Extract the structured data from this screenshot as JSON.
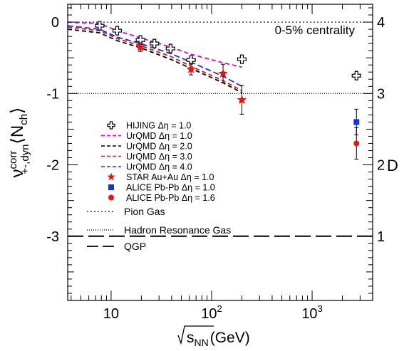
{
  "chart_data": {
    "type": "scatter",
    "x_scale": "log",
    "xlim": [
      3.7,
      4000
    ],
    "ylim": [
      -3.9,
      0.25
    ],
    "ylim_right": [
      0.1,
      4.25
    ],
    "xlabel": "(GeV)",
    "xlabel_sqrt": "s",
    "xlabel_sub": "NN",
    "ylabel_base": "ν",
    "ylabel_sup": "corr",
    "ylabel_sub": "+-,dyn",
    "ylabel_angle": "⟨N",
    "ylabel_angle_sub": "ch",
    "ylabel_angle_close": "⟩",
    "right_label": "D",
    "annotation": "0-5% centrality",
    "x_ticks": [
      {
        "value": 10,
        "label": "10",
        "sup": ""
      },
      {
        "value": 100,
        "label": "10",
        "sup": "2"
      },
      {
        "value": 1000,
        "label": "10",
        "sup": "3"
      }
    ],
    "y_ticks": [
      {
        "value": 0,
        "label": "0"
      },
      {
        "value": -1,
        "label": "-1"
      },
      {
        "value": -2,
        "label": "-2"
      },
      {
        "value": -3,
        "label": "-3"
      }
    ],
    "y_right_ticks": [
      {
        "value": 4,
        "label": "4"
      },
      {
        "value": 3,
        "label": "3"
      },
      {
        "value": 2,
        "label": "2"
      },
      {
        "value": 1,
        "label": "1"
      }
    ],
    "reference_lines": [
      {
        "name": "Pion Gas",
        "y": 0,
        "style": "dotted"
      },
      {
        "name": "Hadron Resonance Gas",
        "y": -1,
        "style": "fine-dotted"
      },
      {
        "name": "QGP",
        "y": -3,
        "style": "long-dash"
      }
    ],
    "series": [
      {
        "name": "HIJING Δη = 1.0",
        "kind": "points",
        "marker": "open-cross",
        "color": "#000000",
        "x": [
          7.7,
          11.5,
          19.6,
          27,
          39,
          62.4,
          200,
          2760
        ],
        "y": [
          -0.05,
          -0.12,
          -0.25,
          -0.3,
          -0.37,
          -0.53,
          -0.52,
          -0.75
        ]
      },
      {
        "name": "UrQMD Δη = 1.0",
        "kind": "line",
        "color": "#dd00dd",
        "x": [
          3.7,
          7.7,
          11.5,
          19.6,
          39,
          62.4,
          130,
          200
        ],
        "y": [
          0,
          -0.02,
          -0.12,
          -0.22,
          -0.35,
          -0.45,
          -0.57,
          -0.63
        ]
      },
      {
        "name": "UrQMD Δη = 2.0",
        "kind": "line",
        "color": "#000000",
        "x": [
          3.7,
          7.7,
          11.5,
          19.6,
          39,
          62.4,
          130,
          200
        ],
        "y": [
          -0.1,
          -0.15,
          -0.26,
          -0.36,
          -0.52,
          -0.65,
          -0.85,
          -0.99
        ]
      },
      {
        "name": "UrQMD Δη = 3.0",
        "kind": "line",
        "color": "#ee1111",
        "x": [
          3.7,
          7.7,
          11.5,
          19.6,
          39,
          62.4,
          130,
          200
        ],
        "y": [
          -0.07,
          -0.12,
          -0.23,
          -0.33,
          -0.48,
          -0.62,
          -0.82,
          -0.96
        ]
      },
      {
        "name": "UrQMD Δη = 4.0",
        "kind": "line",
        "color": "#1133ee",
        "x": [
          3.7,
          7.7,
          11.5,
          19.6,
          39,
          62.4,
          130,
          200
        ],
        "y": [
          -0.05,
          -0.1,
          -0.21,
          -0.3,
          -0.44,
          -0.56,
          -0.76,
          -0.9
        ]
      },
      {
        "name": "STAR Au+Au Δη = 1.0",
        "kind": "points",
        "marker": "star",
        "color": "#ee1111",
        "x": [
          19.6,
          62.4,
          130,
          200
        ],
        "y": [
          -0.35,
          -0.66,
          -0.72,
          -1.09
        ],
        "err": [
          0.06,
          0.08,
          0.13,
          0.2
        ]
      },
      {
        "name": "ALICE Pb-Pb Δη = 1.0",
        "kind": "points",
        "marker": "square",
        "color": "#1133ee",
        "x": [
          2760
        ],
        "y": [
          -1.4
        ],
        "err": [
          0.18
        ]
      },
      {
        "name": "ALICE Pb-Pb Δη = 1.6",
        "kind": "points",
        "marker": "circle",
        "color": "#ee1111",
        "x": [
          2760
        ],
        "y": [
          -1.7
        ],
        "err": [
          0.22
        ]
      }
    ]
  }
}
